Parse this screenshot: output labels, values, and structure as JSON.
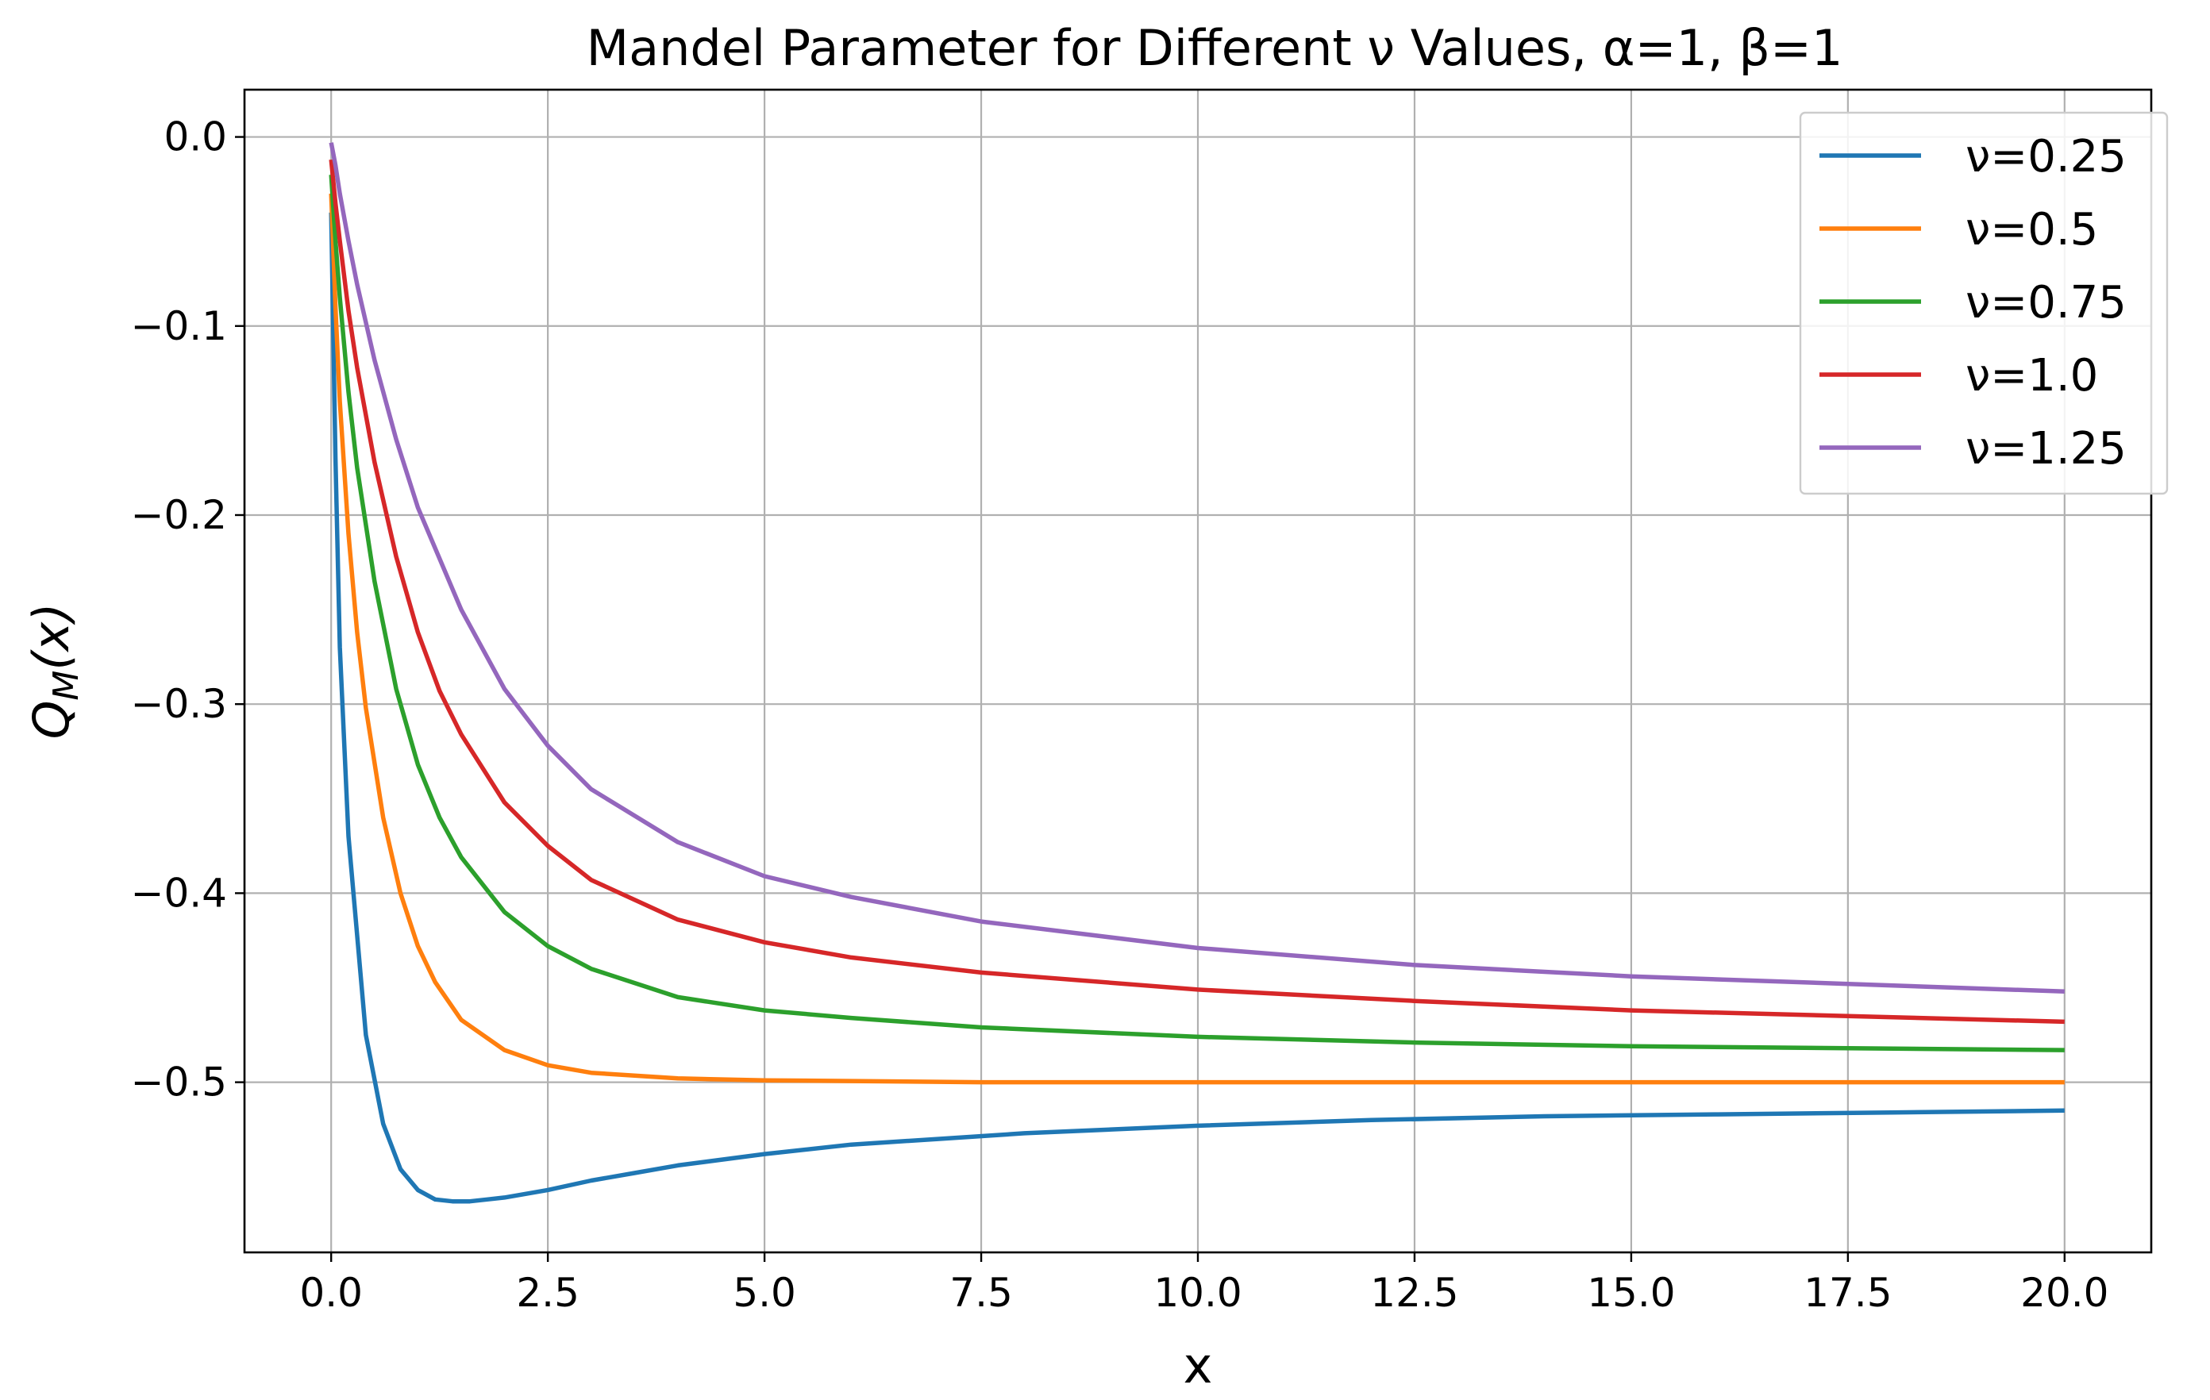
{
  "chart_data": {
    "type": "line",
    "title": "Mandel Parameter for Different ν Values, α=1,  β=1",
    "xlabel": "x",
    "ylabel": "Q_M(x)",
    "ylabel_main": "Q",
    "ylabel_sub": "M",
    "ylabel_arg": "(x)",
    "xlim": [
      -1.0,
      21.0
    ],
    "ylim": [
      -0.59,
      0.025
    ],
    "x_ticks": [
      0.0,
      2.5,
      5.0,
      7.5,
      10.0,
      12.5,
      15.0,
      17.5,
      20.0
    ],
    "x_tick_labels": [
      "0.0",
      "2.5",
      "5.0",
      "7.5",
      "10.0",
      "12.5",
      "15.0",
      "17.5",
      "20.0"
    ],
    "y_ticks": [
      0.0,
      -0.1,
      -0.2,
      -0.3,
      -0.4,
      -0.5
    ],
    "y_tick_labels": [
      "0.0",
      "−0.1",
      "−0.2",
      "−0.3",
      "−0.4",
      "−0.5"
    ],
    "grid": true,
    "legend_position": "top-right",
    "series": [
      {
        "name": "ν=0.25",
        "color": "#1f77b4",
        "x": [
          0.0,
          0.05,
          0.1,
          0.2,
          0.4,
          0.6,
          0.8,
          1.0,
          1.2,
          1.4,
          1.6,
          1.8,
          2.0,
          2.5,
          3.0,
          3.5,
          4.0,
          5.0,
          6.0,
          7.0,
          8.0,
          10.0,
          12.0,
          14.0,
          16.0,
          18.0,
          20.0
        ],
        "y": [
          -0.04,
          -0.17,
          -0.27,
          -0.37,
          -0.475,
          -0.522,
          -0.546,
          -0.557,
          -0.562,
          -0.563,
          -0.563,
          -0.562,
          -0.561,
          -0.557,
          -0.552,
          -0.548,
          -0.544,
          -0.538,
          -0.533,
          -0.53,
          -0.527,
          -0.523,
          -0.52,
          -0.518,
          -0.517,
          -0.516,
          -0.515
        ]
      },
      {
        "name": "ν=0.5",
        "color": "#ff7f0e",
        "x": [
          0.0,
          0.05,
          0.1,
          0.2,
          0.3,
          0.4,
          0.6,
          0.8,
          1.0,
          1.2,
          1.5,
          2.0,
          2.5,
          3.0,
          4.0,
          5.0,
          7.5,
          10.0,
          15.0,
          20.0
        ],
        "y": [
          -0.03,
          -0.09,
          -0.14,
          -0.21,
          -0.262,
          -0.302,
          -0.36,
          -0.4,
          -0.428,
          -0.447,
          -0.467,
          -0.483,
          -0.491,
          -0.495,
          -0.498,
          -0.499,
          -0.5,
          -0.5,
          -0.5,
          -0.5
        ]
      },
      {
        "name": "ν=0.75",
        "color": "#2ca02c",
        "x": [
          0.0,
          0.05,
          0.1,
          0.2,
          0.3,
          0.5,
          0.75,
          1.0,
          1.25,
          1.5,
          2.0,
          2.5,
          3.0,
          4.0,
          5.0,
          6.0,
          7.5,
          10.0,
          12.5,
          15.0,
          17.5,
          20.0
        ],
        "y": [
          -0.02,
          -0.055,
          -0.085,
          -0.135,
          -0.175,
          -0.235,
          -0.292,
          -0.332,
          -0.36,
          -0.381,
          -0.41,
          -0.428,
          -0.44,
          -0.455,
          -0.462,
          -0.466,
          -0.471,
          -0.476,
          -0.479,
          -0.481,
          -0.482,
          -0.483
        ]
      },
      {
        "name": "ν=1.0",
        "color": "#d62728",
        "x": [
          0.0,
          0.05,
          0.1,
          0.2,
          0.3,
          0.5,
          0.75,
          1.0,
          1.25,
          1.5,
          2.0,
          2.5,
          3.0,
          4.0,
          5.0,
          6.0,
          7.5,
          10.0,
          12.5,
          15.0,
          17.5,
          20.0
        ],
        "y": [
          -0.012,
          -0.035,
          -0.055,
          -0.092,
          -0.122,
          -0.172,
          -0.222,
          -0.262,
          -0.293,
          -0.316,
          -0.352,
          -0.375,
          -0.393,
          -0.414,
          -0.426,
          -0.434,
          -0.442,
          -0.451,
          -0.457,
          -0.462,
          -0.465,
          -0.468
        ]
      },
      {
        "name": "ν=1.25",
        "color": "#9467bd",
        "x": [
          0.0,
          0.05,
          0.1,
          0.2,
          0.3,
          0.5,
          0.75,
          1.0,
          1.5,
          2.0,
          2.5,
          3.0,
          4.0,
          5.0,
          6.0,
          7.5,
          10.0,
          12.5,
          15.0,
          17.5,
          20.0
        ],
        "y": [
          -0.003,
          -0.015,
          -0.03,
          -0.055,
          -0.078,
          -0.118,
          -0.16,
          -0.196,
          -0.25,
          -0.292,
          -0.322,
          -0.345,
          -0.373,
          -0.391,
          -0.402,
          -0.415,
          -0.429,
          -0.438,
          -0.444,
          -0.448,
          -0.452
        ]
      }
    ]
  }
}
